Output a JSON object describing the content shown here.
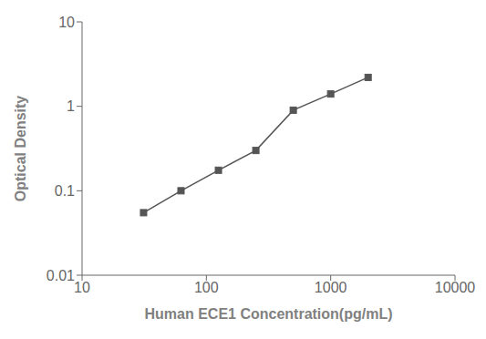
{
  "chart_data": {
    "type": "line",
    "x": [
      31.25,
      62.5,
      125,
      250,
      500,
      1000,
      2000
    ],
    "values": [
      0.055,
      0.1,
      0.175,
      0.3,
      0.9,
      1.4,
      2.2
    ],
    "xlabel": "Human ECE1 Concentration(pg/mL)",
    "ylabel": "Optical Density",
    "xlim": [
      10,
      10000
    ],
    "ylim": [
      0.01,
      10
    ],
    "xticks": [
      10,
      100,
      1000,
      10000
    ],
    "yticks": [
      0.01,
      0.1,
      1,
      10
    ],
    "log": true,
    "grid": false,
    "color": "#555555",
    "marker": "square"
  }
}
